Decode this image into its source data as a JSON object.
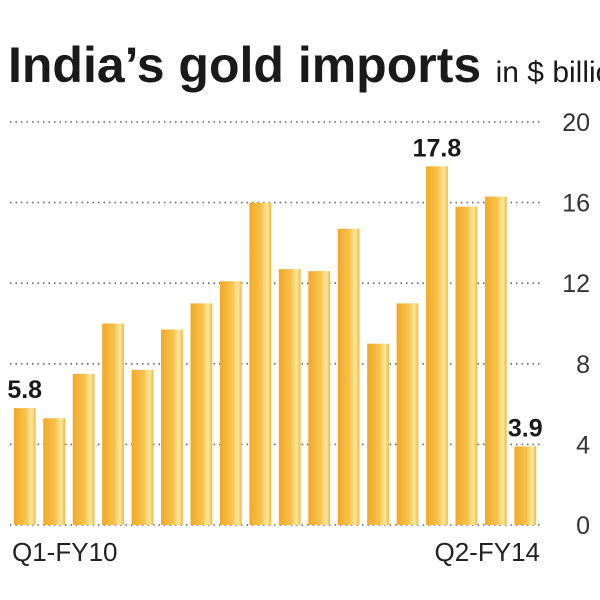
{
  "chart_data": {
    "type": "bar",
    "title": "India’s gold imports",
    "subtitle": "in $ billion",
    "categories": [
      "Q1-FY10",
      "",
      "",
      "",
      "",
      "",
      "",
      "",
      "",
      "",
      "",
      "",
      "",
      "",
      "",
      "",
      "",
      "Q2-FY14"
    ],
    "values": [
      5.8,
      5.3,
      7.5,
      10.0,
      7.7,
      9.7,
      11.0,
      12.1,
      16.0,
      12.7,
      12.6,
      14.7,
      9.0,
      11.0,
      17.8,
      15.8,
      16.3,
      3.9
    ],
    "data_labels": [
      {
        "index": 0,
        "text": "5.8"
      },
      {
        "index": 14,
        "text": "17.8"
      },
      {
        "index": 17,
        "text": "3.9"
      }
    ],
    "yticks": [
      "0",
      "4",
      "8",
      "12",
      "16",
      "20"
    ],
    "ylim": [
      0,
      20
    ],
    "grid": true,
    "axis_side": "right",
    "bar_color": "#f3b430",
    "bar_highlight": "#fde9a2"
  }
}
